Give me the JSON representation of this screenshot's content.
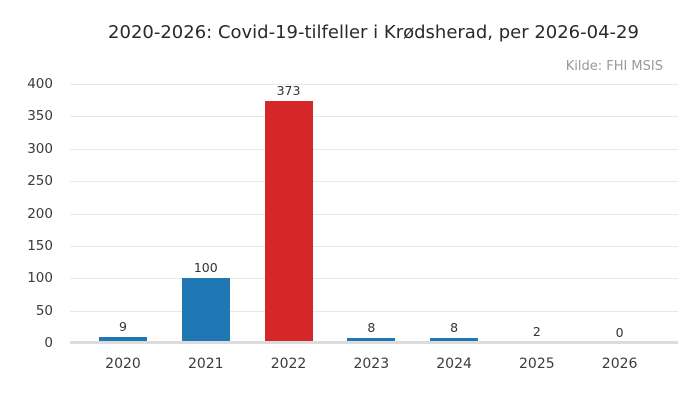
{
  "chart_data": {
    "type": "bar",
    "title": "2020-2026: Covid-19-tilfeller i Krødsherad, per 2026-04-29",
    "source": "Kilde: FHI MSIS",
    "categories": [
      "2020",
      "2021",
      "2022",
      "2023",
      "2024",
      "2025",
      "2026"
    ],
    "values": [
      9,
      100,
      373,
      8,
      8,
      2,
      0
    ],
    "value_labels": [
      "9",
      "100",
      "373",
      "8",
      "8",
      "2",
      "0"
    ],
    "highlight_index": 2,
    "ylim": [
      0,
      400
    ],
    "yticks": [
      0,
      50,
      100,
      150,
      200,
      250,
      300,
      350,
      400
    ],
    "grid": true,
    "legend_position": "none",
    "colors": {
      "bar": "#1f77b4",
      "highlight": "#d62728",
      "grid": "#e8e8e8",
      "zero_line": "#dcdcdc",
      "tick_text": "#3b3b3b",
      "value_text": "#333333",
      "title_text": "#2a2a2a",
      "source_text": "#999999"
    }
  }
}
